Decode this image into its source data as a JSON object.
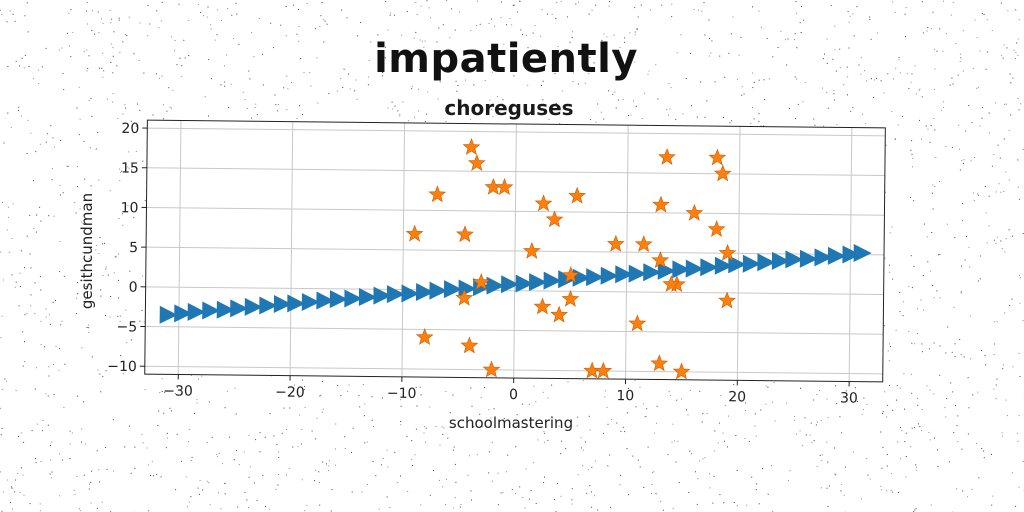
{
  "chart_data": {
    "type": "scatter",
    "title": "impatiently",
    "subtitle": "choreguses",
    "xlabel": "schoolmastering",
    "ylabel": "gesithcundman",
    "xlim": [
      -33,
      33
    ],
    "ylim": [
      -11,
      21
    ],
    "xticks": [
      -30,
      -20,
      -10,
      0,
      10,
      20,
      30
    ],
    "yticks": [
      -10,
      -5,
      0,
      5,
      10,
      15,
      20
    ],
    "xtick_labels": [
      "−30",
      "−20",
      "−10",
      "0",
      "10",
      "20",
      "30"
    ],
    "ytick_labels": [
      "−10",
      "−5",
      "0",
      "5",
      "10",
      "15",
      "20"
    ],
    "grid": true,
    "series": [
      {
        "marker": "triangle-right",
        "color": "#1f77b4",
        "x": [
          -31,
          -29.7,
          -28.5,
          -27.2,
          -25.9,
          -24.7,
          -23.4,
          -22.1,
          -20.8,
          -19.6,
          -18.3,
          -17,
          -15.8,
          -14.5,
          -13.2,
          -11.9,
          -10.7,
          -9.4,
          -8.1,
          -6.9,
          -5.6,
          -4.3,
          -3,
          -1.8,
          -0.5,
          0.8,
          2,
          3.3,
          4.6,
          5.9,
          7.1,
          8.4,
          9.7,
          10.9,
          12.2,
          13.5,
          14.8,
          16,
          17.3,
          18.6,
          19.8,
          21.1,
          22.4,
          23.7,
          24.9,
          26.2,
          27.5,
          28.7,
          30,
          31
        ],
        "y": [
          -3.5,
          -3.3,
          -3.1,
          -2.9,
          -2.8,
          -2.6,
          -2.4,
          -2.2,
          -2.0,
          -1.9,
          -1.7,
          -1.5,
          -1.3,
          -1.2,
          -1.0,
          -0.8,
          -0.6,
          -0.5,
          -0.3,
          -0.1,
          0.1,
          0.2,
          0.4,
          0.6,
          0.8,
          0.9,
          1.1,
          1.3,
          1.5,
          1.7,
          1.8,
          2.0,
          2.2,
          2.3,
          2.5,
          2.7,
          2.9,
          3.0,
          3.2,
          3.4,
          3.6,
          3.7,
          3.9,
          4.1,
          4.3,
          4.4,
          4.6,
          4.8,
          5.0,
          5.2
        ]
      },
      {
        "marker": "star",
        "color": "#ff7f0e",
        "x": [
          -4,
          -3.5,
          -7,
          -4.5,
          -9,
          -2,
          -1,
          2.5,
          3.5,
          5.5,
          -3,
          1.5,
          5,
          9,
          11.5,
          13,
          13.5,
          14.5,
          18,
          18.5,
          16,
          18,
          19,
          13,
          14,
          19,
          5,
          -4.5,
          2.5,
          4,
          11,
          -8,
          -4,
          -2,
          7,
          8,
          13,
          15
        ],
        "y": [
          18,
          16,
          12,
          7,
          7,
          13,
          13,
          11,
          9,
          12,
          1,
          5,
          2,
          6,
          6,
          11,
          17,
          1,
          17,
          15,
          10,
          8,
          5,
          4,
          1,
          -1,
          -1,
          -1,
          -2,
          -3,
          -4,
          -6,
          -7,
          -10,
          -10,
          -10,
          -9,
          -10
        ]
      }
    ]
  }
}
